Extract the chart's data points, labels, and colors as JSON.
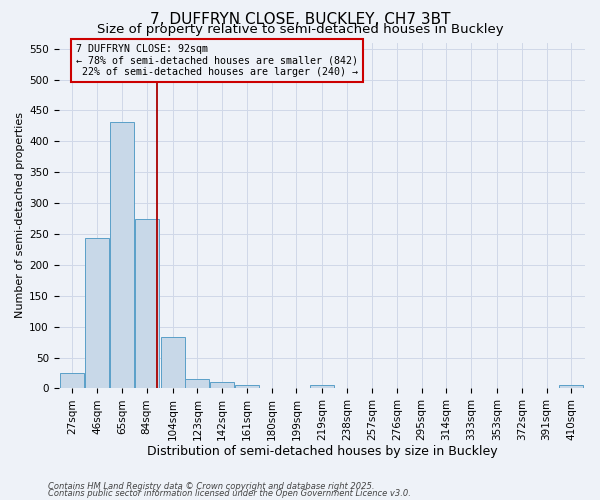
{
  "title": "7, DUFFRYN CLOSE, BUCKLEY, CH7 3BT",
  "subtitle": "Size of property relative to semi-detached houses in Buckley",
  "xlabel": "Distribution of semi-detached houses by size in Buckley",
  "ylabel": "Number of semi-detached properties",
  "bins": [
    27,
    46,
    65,
    84,
    104,
    123,
    142,
    161,
    180,
    199,
    219,
    238,
    257,
    276,
    295,
    314,
    333,
    353,
    372,
    391,
    410
  ],
  "values": [
    25,
    243,
    432,
    275,
    83,
    15,
    10,
    5,
    0,
    0,
    5,
    0,
    0,
    0,
    0,
    0,
    0,
    0,
    0,
    0,
    5
  ],
  "bar_color": "#c8d8e8",
  "bar_edge_color": "#5a9fc8",
  "grid_color": "#d0d8e8",
  "subject_size": 92,
  "subject_label": "7 DUFFRYN CLOSE: 92sqm",
  "pct_smaller": 78,
  "n_smaller": 842,
  "pct_larger": 22,
  "n_larger": 240,
  "vline_color": "#aa0000",
  "annotation_box_color": "#cc0000",
  "ylim": [
    0,
    560
  ],
  "yticks": [
    0,
    50,
    100,
    150,
    200,
    250,
    300,
    350,
    400,
    450,
    500,
    550
  ],
  "footnote1": "Contains HM Land Registry data © Crown copyright and database right 2025.",
  "footnote2": "Contains public sector information licensed under the Open Government Licence v3.0.",
  "bg_color": "#eef2f8",
  "title_fontsize": 11,
  "subtitle_fontsize": 9.5,
  "xlabel_fontsize": 9,
  "ylabel_fontsize": 8,
  "tick_fontsize": 7.5,
  "footnote_fontsize": 6
}
